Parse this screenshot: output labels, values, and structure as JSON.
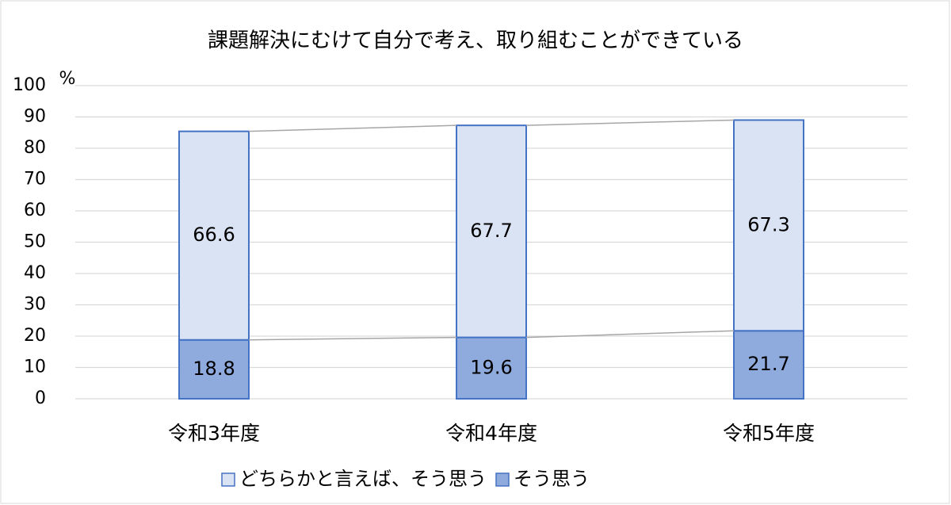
{
  "chart_data": {
    "type": "stacked_bar",
    "title": "課題解決にむけて自分で考え、取り組むことができている",
    "y_unit": "%",
    "categories": [
      "令和3年度",
      "令和4年度",
      "令和5年度"
    ],
    "series": [
      {
        "name": "そう思う",
        "color": "#8faadc",
        "values": [
          18.8,
          19.6,
          21.7
        ]
      },
      {
        "name": "どちらかと言えば、そう思う",
        "color": "#dae3f3",
        "values": [
          66.6,
          67.7,
          67.3
        ]
      }
    ],
    "ylim": [
      0,
      100
    ],
    "yticks": [
      0,
      10,
      20,
      30,
      40,
      50,
      60,
      70,
      80,
      90,
      100
    ],
    "grid": true,
    "legend": "bottom"
  }
}
